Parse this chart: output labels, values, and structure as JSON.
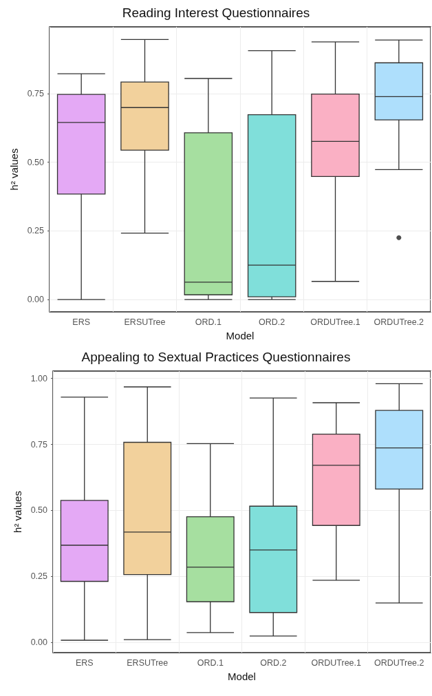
{
  "chart_data": [
    {
      "type": "box",
      "title": "Reading Interest Questionnaires",
      "xlabel": "Model",
      "ylabel": "h² values",
      "categories": [
        "ERS",
        "ERSUTree",
        "ORD.1",
        "ORD.2",
        "ORDUTree.1",
        "ORDUTree.2"
      ],
      "colors": [
        "#e4a9f5",
        "#f2d19c",
        "#a6dfa0",
        "#80dfda",
        "#fab0c4",
        "#aedffc"
      ],
      "boxes": [
        {
          "low": 0,
          "q1": 0.384,
          "median": 0.645,
          "q3": 0.747,
          "high": 0.822
        },
        {
          "low": 0.242,
          "q1": 0.544,
          "median": 0.699,
          "q3": 0.792,
          "high": 0.947
        },
        {
          "low": 0,
          "q1": 0.017,
          "median": 0.063,
          "q3": 0.607,
          "high": 0.805
        },
        {
          "low": 0,
          "q1": 0.01,
          "median": 0.125,
          "q3": 0.673,
          "high": 0.906
        },
        {
          "low": 0.066,
          "q1": 0.448,
          "median": 0.576,
          "q3": 0.748,
          "high": 0.938
        },
        {
          "low": 0.473,
          "q1": 0.654,
          "median": 0.739,
          "q3": 0.862,
          "high": 0.945,
          "outliers": [
            0.225
          ]
        }
      ],
      "ylim": [
        -0.045,
        0.993
      ],
      "yticks": [
        {
          "value": 0,
          "label": "0.00"
        },
        {
          "value": 0.25,
          "label": "0.25"
        },
        {
          "value": 0.5,
          "label": "0.50"
        },
        {
          "value": 0.75,
          "label": "0.75"
        }
      ],
      "grid": true
    },
    {
      "type": "box",
      "title": "Appealing to Sextual Practices Questionnaires",
      "xlabel": "Model",
      "ylabel": "h² values",
      "categories": [
        "ERS",
        "ERSUTree",
        "ORD.1",
        "ORD.2",
        "ORDUTree.1",
        "ORDUTree.2"
      ],
      "colors": [
        "#e4a9f5",
        "#f2d19c",
        "#a6dfa0",
        "#80dfda",
        "#fab0c4",
        "#aedffc"
      ],
      "boxes": [
        {
          "low": 0.008,
          "q1": 0.231,
          "median": 0.368,
          "q3": 0.538,
          "high": 0.929
        },
        {
          "low": 0.01,
          "q1": 0.257,
          "median": 0.418,
          "q3": 0.758,
          "high": 0.968
        },
        {
          "low": 0.037,
          "q1": 0.154,
          "median": 0.285,
          "q3": 0.476,
          "high": 0.753
        },
        {
          "low": 0.024,
          "q1": 0.113,
          "median": 0.35,
          "q3": 0.516,
          "high": 0.926
        },
        {
          "low": 0.235,
          "q1": 0.443,
          "median": 0.671,
          "q3": 0.789,
          "high": 0.908
        },
        {
          "low": 0.149,
          "q1": 0.581,
          "median": 0.737,
          "q3": 0.879,
          "high": 0.98
        }
      ],
      "ylim": [
        -0.039,
        1.028
      ],
      "yticks": [
        {
          "value": 0,
          "label": "0.00"
        },
        {
          "value": 0.25,
          "label": "0.25"
        },
        {
          "value": 0.5,
          "label": "0.50"
        },
        {
          "value": 0.75,
          "label": "0.75"
        },
        {
          "value": 1,
          "label": "1.00"
        }
      ],
      "grid": true
    }
  ]
}
